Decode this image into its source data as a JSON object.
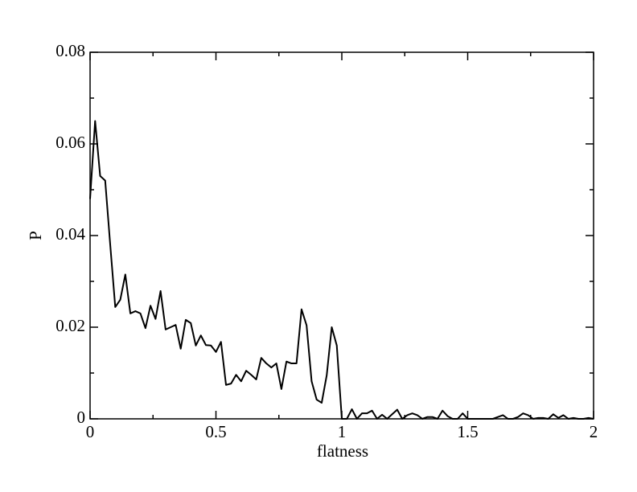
{
  "chart_data": {
    "type": "line",
    "xlabel": "flatness",
    "ylabel": "P",
    "xlim": [
      0,
      2
    ],
    "ylim": [
      0,
      0.08
    ],
    "xticks": [
      0,
      0.5,
      1,
      1.5,
      2
    ],
    "yticks": [
      0,
      0.02,
      0.04,
      0.06,
      0.08
    ],
    "xminorticks": [
      0.25,
      0.75,
      1.25,
      1.75
    ],
    "yminorticks": [
      0.01,
      0.03,
      0.05,
      0.07
    ],
    "grid": false,
    "series": [
      {
        "color": "#000000",
        "x": [
          0,
          0.02,
          0.04,
          0.06,
          0.08,
          0.1,
          0.12,
          0.14,
          0.16,
          0.18,
          0.2,
          0.22,
          0.24,
          0.26,
          0.28,
          0.3,
          0.32,
          0.34,
          0.36,
          0.38,
          0.4,
          0.42,
          0.44,
          0.46,
          0.48,
          0.5,
          0.52,
          0.54,
          0.56,
          0.58,
          0.6,
          0.62,
          0.64,
          0.66,
          0.68,
          0.7,
          0.72,
          0.74,
          0.76,
          0.78,
          0.8,
          0.82,
          0.84,
          0.86,
          0.88,
          0.9,
          0.92,
          0.94,
          0.96,
          0.98,
          1,
          1.02,
          1.04,
          1.06,
          1.08,
          1.1,
          1.12,
          1.14,
          1.16,
          1.18,
          1.2,
          1.22,
          1.24,
          1.26,
          1.28,
          1.3,
          1.32,
          1.34,
          1.36,
          1.38,
          1.4,
          1.42,
          1.44,
          1.46,
          1.48,
          1.5,
          1.52,
          1.54,
          1.56,
          1.58,
          1.6,
          1.62,
          1.64,
          1.66,
          1.68,
          1.7,
          1.72,
          1.74,
          1.76,
          1.78,
          1.8,
          1.82,
          1.84,
          1.86,
          1.88,
          1.9,
          1.92,
          1.94,
          1.96,
          1.98,
          2
        ],
        "values": [
          0.048,
          0.065,
          0.053,
          0.052,
          0.038,
          0.0244,
          0.026,
          0.0315,
          0.023,
          0.0235,
          0.023,
          0.0198,
          0.0247,
          0.0218,
          0.0279,
          0.0195,
          0.02,
          0.0205,
          0.0153,
          0.0216,
          0.0209,
          0.016,
          0.0182,
          0.0161,
          0.016,
          0.0146,
          0.0168,
          0.0074,
          0.0077,
          0.0096,
          0.0082,
          0.0105,
          0.0096,
          0.0086,
          0.0133,
          0.0121,
          0.0112,
          0.0121,
          0.0065,
          0.0125,
          0.0121,
          0.0121,
          0.0239,
          0.0204,
          0.0082,
          0.0042,
          0.0035,
          0.0095,
          0.02,
          0.016,
          0,
          0,
          0.0021,
          0,
          0.0012,
          0.0012,
          0.0018,
          0,
          0.0009,
          0,
          0.001,
          0.002,
          0,
          0.0008,
          0.0012,
          0.0008,
          0,
          0.0004,
          0.0004,
          0,
          0.0018,
          0.0006,
          0,
          0,
          0.0012,
          0,
          0,
          0,
          0,
          0,
          0,
          0.0004,
          0.0008,
          0,
          0,
          0.0004,
          0.0012,
          0.0008,
          0,
          0.0002,
          0.0002,
          0,
          0.001,
          0.0002,
          0.0008,
          0,
          0.0002,
          0,
          0,
          0.0002,
          0
        ]
      }
    ]
  }
}
